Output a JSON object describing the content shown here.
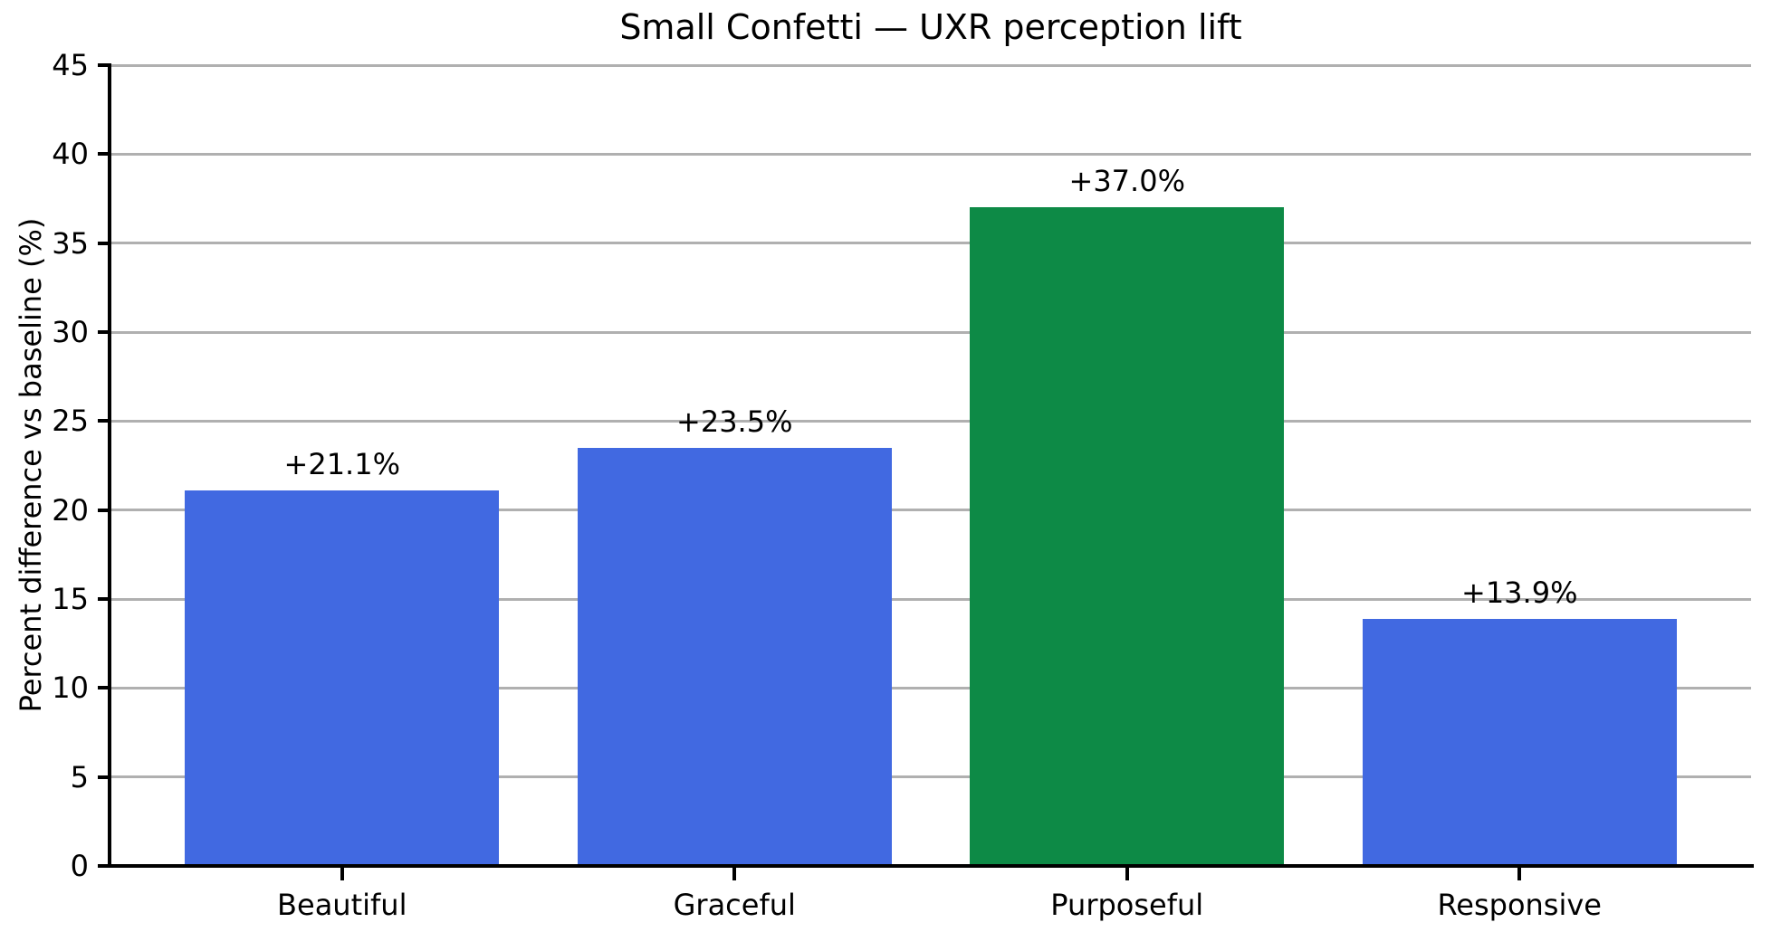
{
  "chart_data": {
    "type": "bar",
    "title": "Small Confetti — UXR perception lift",
    "xlabel": "",
    "ylabel": "Percent difference vs baseline (%)",
    "categories": [
      "Beautiful",
      "Graceful",
      "Purposeful",
      "Responsive"
    ],
    "values": [
      21.1,
      23.5,
      37.0,
      13.9
    ],
    "value_labels": [
      "+21.1%",
      "+23.5%",
      "+37.0%",
      "+13.9%"
    ],
    "bar_colors": [
      "#4169E1",
      "#4169E1",
      "#0D8A46",
      "#4169E1"
    ],
    "highlight_index": 2,
    "base_bar_color": "#4169E1",
    "highlight_bar_color": "#0D8A46",
    "ylim": [
      0,
      45
    ],
    "yticks": [
      0,
      5,
      10,
      15,
      20,
      25,
      30,
      35,
      40,
      45
    ],
    "grid": "horizontal",
    "grid_color": "#b0b0b0",
    "axis_color": "#000000",
    "background_color": "#ffffff",
    "legend": null
  }
}
